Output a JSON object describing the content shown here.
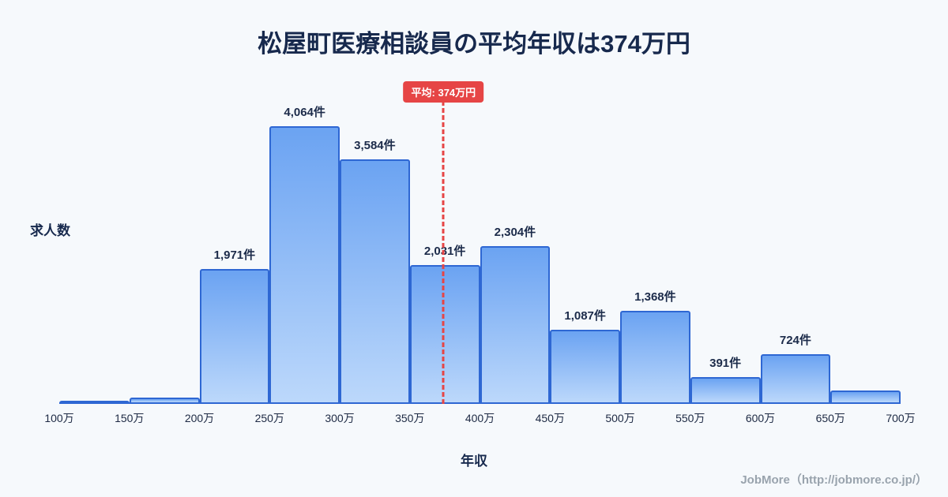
{
  "header": {
    "title": "松屋町医療相談員の平均年収は374万円"
  },
  "chart_data": {
    "type": "bar",
    "title": "松屋町医療相談員の平均年収は374万円",
    "xlabel": "年収",
    "ylabel": "求人数",
    "x_range": [
      100,
      700
    ],
    "ylim": [
      0,
      4300
    ],
    "grid": "off",
    "legend": "off",
    "tick_labels": [
      "100万",
      "150万",
      "200万",
      "250万",
      "300万",
      "350万",
      "400万",
      "450万",
      "500万",
      "550万",
      "600万",
      "650万",
      "700万"
    ],
    "bins": [
      {
        "range": "100万-150万",
        "value": 40,
        "label": ""
      },
      {
        "range": "150万-200万",
        "value": 90,
        "label": ""
      },
      {
        "range": "200万-250万",
        "value": 1971,
        "label": "1,971件"
      },
      {
        "range": "250万-300万",
        "value": 4064,
        "label": "4,064件"
      },
      {
        "range": "300万-350万",
        "value": 3584,
        "label": "3,584件"
      },
      {
        "range": "350万-400万",
        "value": 2031,
        "label": "2,031件"
      },
      {
        "range": "400万-450万",
        "value": 2304,
        "label": "2,304件"
      },
      {
        "range": "450万-500万",
        "value": 1087,
        "label": "1,087件"
      },
      {
        "range": "500万-550万",
        "value": 1368,
        "label": "1,368件"
      },
      {
        "range": "550万-600万",
        "value": 391,
        "label": "391件"
      },
      {
        "range": "600万-650万",
        "value": 724,
        "label": "724件"
      },
      {
        "range": "650万-700万",
        "value": 200,
        "label": ""
      }
    ],
    "average_line": {
      "value": 374,
      "label": "平均: 374万円",
      "color": "#e64545"
    }
  },
  "colors": {
    "background": "#f6f9fc",
    "title_text": "#17294d",
    "bar_fill_top": "#6ba3f2",
    "bar_fill_bottom": "#bcd8fb",
    "bar_border": "#2e67d3",
    "average_line": "#e64545",
    "badge_background": "#e64545",
    "badge_text": "#ffffff",
    "footer_text": "#99a3ad"
  },
  "footer": {
    "credit": "JobMore（http://jobmore.co.jp/）"
  }
}
